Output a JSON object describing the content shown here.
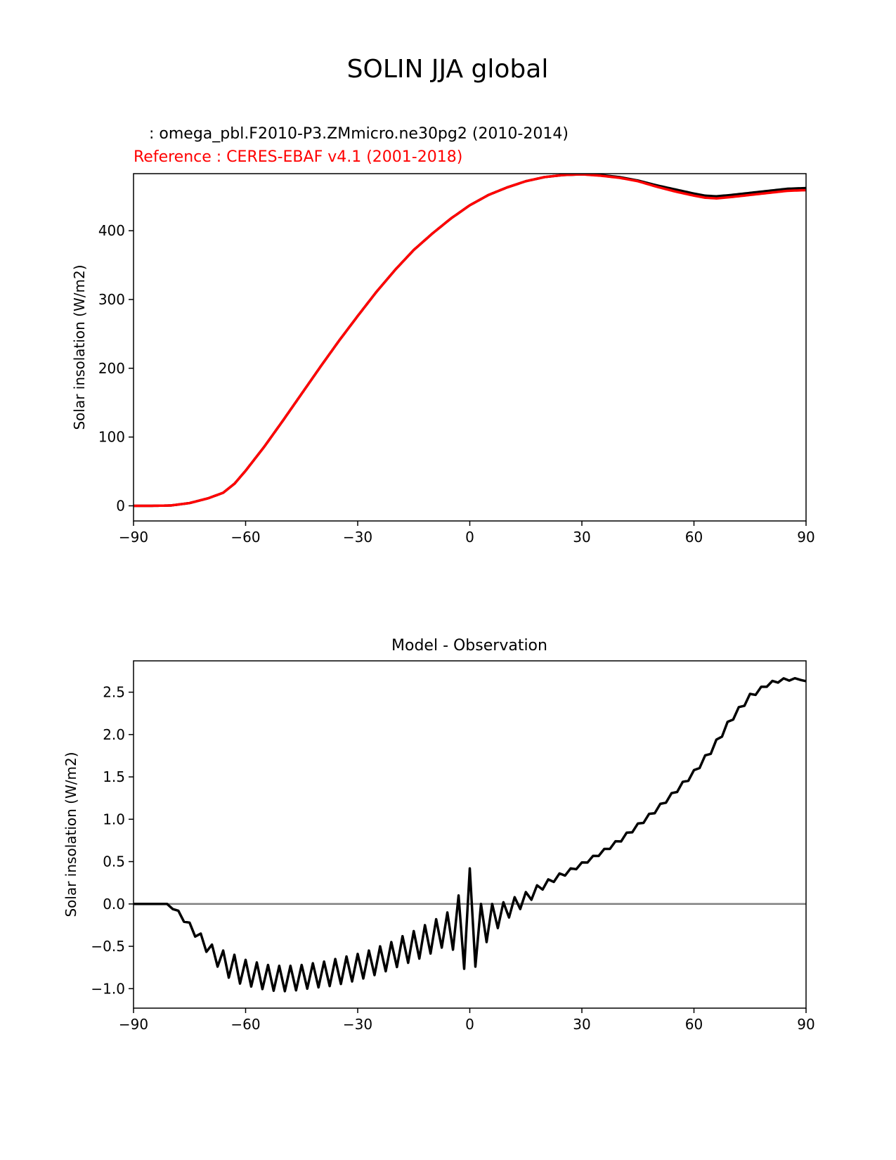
{
  "figure_title": "SOLIN JJA global",
  "chart_data": [
    {
      "type": "line",
      "test_label": " : omega_pbl.F2010-P3.ZMmicro.ne30pg2 (2010-2014)",
      "ref_label": "Reference : CERES-EBAF v4.1 (2001-2018)",
      "title": "",
      "xlabel": "",
      "ylabel": "Solar insolation (W/m2)",
      "xlim": [
        -90,
        90
      ],
      "ylim": [
        -22,
        483
      ],
      "xticks": [
        -90,
        -60,
        -30,
        0,
        30,
        60,
        90
      ],
      "xtick_labels": [
        "−90",
        "−60",
        "−30",
        "0",
        "30",
        "60",
        "90"
      ],
      "yticks": [
        0,
        100,
        200,
        300,
        400
      ],
      "ytick_labels": [
        "0",
        "100",
        "200",
        "300",
        "400"
      ],
      "series": [
        {
          "name": "test",
          "color": "#000000",
          "x": [
            -90,
            -85,
            -80,
            -75,
            -70,
            -66,
            -63,
            -60,
            -55,
            -50,
            -45,
            -40,
            -35,
            -30,
            -25,
            -20,
            -15,
            -10,
            -5,
            0,
            5,
            10,
            15,
            20,
            25,
            30,
            35,
            40,
            45,
            50,
            55,
            60,
            63,
            66,
            70,
            75,
            80,
            85,
            90
          ],
          "y": [
            0,
            0,
            0.5,
            4,
            11,
            19,
            32,
            51,
            86,
            124,
            163,
            202,
            240,
            276,
            311,
            343,
            372,
            396,
            418,
            437,
            452,
            463,
            472,
            478,
            481,
            482,
            481,
            478,
            473,
            466,
            460,
            454,
            451,
            450,
            452,
            455,
            458,
            461,
            462
          ]
        },
        {
          "name": "reference",
          "color": "#ff0000",
          "x": [
            -90,
            -85,
            -80,
            -75,
            -70,
            -66,
            -63,
            -60,
            -55,
            -50,
            -45,
            -40,
            -35,
            -30,
            -25,
            -20,
            -15,
            -10,
            -5,
            0,
            5,
            10,
            15,
            20,
            25,
            30,
            35,
            40,
            45,
            50,
            55,
            60,
            63,
            66,
            70,
            75,
            80,
            85,
            90
          ],
          "y": [
            0,
            0,
            0.5,
            4,
            11,
            19,
            32,
            51,
            86,
            124,
            163,
            202,
            240,
            276,
            311,
            343,
            372,
            396,
            418,
            437,
            452,
            463,
            472,
            478,
            481,
            482,
            480,
            477,
            472,
            464,
            457,
            451,
            448,
            447,
            449,
            452,
            455,
            458,
            459
          ]
        }
      ]
    },
    {
      "type": "line",
      "title": "Model - Observation",
      "xlabel": "",
      "ylabel": "Solar insolation (W/m2)",
      "xlim": [
        -90,
        90
      ],
      "ylim": [
        -1.23,
        2.87
      ],
      "xticks": [
        -90,
        -60,
        -30,
        0,
        30,
        60,
        90
      ],
      "xtick_labels": [
        "−90",
        "−60",
        "−30",
        "0",
        "30",
        "60",
        "90"
      ],
      "yticks": [
        -1.0,
        -0.5,
        0.0,
        0.5,
        1.0,
        1.5,
        2.0,
        2.5
      ],
      "ytick_labels": [
        "−1.0",
        "−0.5",
        "0.0",
        "0.5",
        "1.0",
        "1.5",
        "2.0",
        "2.5"
      ],
      "zero_line_color": "#808080",
      "series": [
        {
          "name": "difference",
          "color": "#000000",
          "envelope_x": [
            -90,
            -81,
            -78,
            -75,
            -72,
            -69,
            -66,
            -63,
            -60,
            -57,
            -54,
            -51,
            -48,
            -45,
            -42,
            -39,
            -36,
            -33,
            -30,
            -27,
            -24,
            -21,
            -18,
            -15,
            -12,
            -9,
            -6,
            -3,
            0,
            3,
            6,
            9,
            12,
            15,
            18,
            21,
            24,
            27,
            30,
            35,
            40,
            45,
            50,
            55,
            60,
            65,
            70,
            75,
            80,
            83,
            86,
            88,
            90
          ],
          "upper": [
            0,
            0,
            -0.08,
            -0.22,
            -0.35,
            -0.48,
            -0.55,
            -0.6,
            -0.66,
            -0.69,
            -0.72,
            -0.73,
            -0.73,
            -0.72,
            -0.7,
            -0.68,
            -0.65,
            -0.62,
            -0.59,
            -0.55,
            -0.5,
            -0.45,
            -0.38,
            -0.32,
            -0.25,
            -0.18,
            -0.1,
            0.1,
            0.42,
            0.0,
            0.0,
            0.02,
            0.08,
            0.14,
            0.22,
            0.29,
            0.36,
            0.42,
            0.49,
            0.62,
            0.77,
            0.95,
            1.14,
            1.35,
            1.58,
            1.87,
            2.22,
            2.48,
            2.62,
            2.66,
            2.67,
            2.66,
            2.63
          ],
          "lower": [
            0,
            0,
            -0.12,
            -0.3,
            -0.47,
            -0.66,
            -0.82,
            -0.92,
            -0.96,
            -0.99,
            -1.02,
            -1.03,
            -1.03,
            -1.01,
            -0.99,
            -0.98,
            -0.96,
            -0.93,
            -0.9,
            -0.86,
            -0.82,
            -0.77,
            -0.72,
            -0.67,
            -0.62,
            -0.55,
            -0.48,
            -0.6,
            -0.93,
            -0.55,
            -0.35,
            -0.22,
            -0.1,
            -0.02,
            0.12,
            0.22,
            0.3,
            0.37,
            0.45,
            0.58,
            0.72,
            0.9,
            1.09,
            1.3,
            1.52,
            1.8,
            2.15,
            2.42,
            2.58,
            2.62,
            2.64,
            2.65,
            2.63
          ]
        }
      ]
    }
  ]
}
